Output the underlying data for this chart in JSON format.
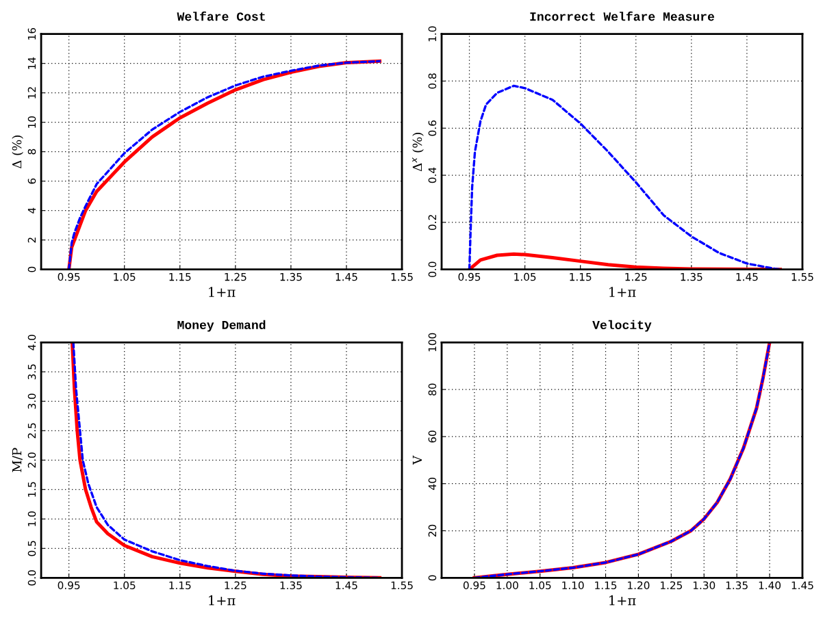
{
  "chart_data": [
    {
      "type": "line",
      "title": "Welfare Cost",
      "xlabel": "1+π",
      "ylabel": "Δ (%)",
      "grid": true,
      "xlim": [
        0.9,
        1.55
      ],
      "xticks": [
        0.95,
        1.05,
        1.15,
        1.25,
        1.35,
        1.45,
        1.55
      ],
      "ylim": [
        0,
        16
      ],
      "yticks": [
        0,
        2,
        4,
        6,
        8,
        10,
        12,
        14,
        16
      ],
      "series": [
        {
          "color": "#ff0000",
          "line_style": "solid",
          "x": [
            0.95,
            0.955,
            0.96,
            0.97,
            0.98,
            1.0,
            1.05,
            1.1,
            1.15,
            1.2,
            1.25,
            1.3,
            1.35,
            1.4,
            1.45,
            1.51
          ],
          "values": [
            0,
            1.5,
            2.0,
            3.0,
            4.0,
            5.3,
            7.3,
            9.0,
            10.3,
            11.3,
            12.2,
            12.9,
            13.4,
            13.8,
            14.05,
            14.15
          ]
        },
        {
          "color": "#0000ff",
          "line_style": "dashed",
          "x": [
            0.95,
            0.955,
            0.96,
            0.97,
            0.98,
            1.0,
            1.05,
            1.1,
            1.15,
            1.2,
            1.25,
            1.3,
            1.35,
            1.4,
            1.45,
            1.51
          ],
          "values": [
            0,
            1.8,
            2.5,
            3.5,
            4.3,
            5.8,
            7.9,
            9.5,
            10.7,
            11.7,
            12.5,
            13.1,
            13.5,
            13.85,
            14.05,
            14.15
          ]
        }
      ]
    },
    {
      "type": "line",
      "title": "Incorrect Welfare Measure",
      "xlabel": "1+π",
      "ylabel": "Δ$^{x}$ (%)",
      "grid": true,
      "xlim": [
        0.9,
        1.55
      ],
      "xticks": [
        0.95,
        1.05,
        1.15,
        1.25,
        1.35,
        1.45,
        1.55
      ],
      "ylim": [
        0,
        1
      ],
      "yticks": [
        {
          "value": 0,
          "label": "0.0"
        },
        0.2,
        0.4,
        0.6,
        0.8,
        {
          "value": 1,
          "label": "1.0"
        }
      ],
      "series": [
        {
          "color": "#ff0000",
          "line_style": "solid",
          "x": [
            0.95,
            0.97,
            1.0,
            1.03,
            1.05,
            1.1,
            1.15,
            1.2,
            1.25,
            1.3,
            1.35,
            1.51
          ],
          "values": [
            0,
            0.04,
            0.06,
            0.065,
            0.063,
            0.05,
            0.035,
            0.02,
            0.01,
            0.005,
            0.002,
            0
          ]
        },
        {
          "color": "#0000ff",
          "line_style": "dashed",
          "x": [
            0.95,
            0.952,
            0.955,
            0.96,
            0.97,
            0.98,
            1.0,
            1.03,
            1.05,
            1.1,
            1.15,
            1.2,
            1.25,
            1.3,
            1.35,
            1.4,
            1.45,
            1.5,
            1.51
          ],
          "values": [
            0,
            0.15,
            0.35,
            0.5,
            0.63,
            0.7,
            0.75,
            0.78,
            0.77,
            0.72,
            0.62,
            0.5,
            0.37,
            0.23,
            0.14,
            0.07,
            0.025,
            0.003,
            0
          ]
        }
      ]
    },
    {
      "type": "line",
      "title": "Money Demand",
      "xlabel": "1+π",
      "ylabel": "M/P",
      "grid": true,
      "xlim": [
        0.9,
        1.55
      ],
      "xticks": [
        0.95,
        1.05,
        1.15,
        1.25,
        1.35,
        1.45,
        1.55
      ],
      "ylim": [
        0,
        4
      ],
      "yticks": [
        {
          "value": 0,
          "label": "0.0"
        },
        0.5,
        {
          "value": 1,
          "label": "1.0"
        },
        1.5,
        {
          "value": 2,
          "label": "2.0"
        },
        2.5,
        {
          "value": 3,
          "label": "3.0"
        },
        3.5,
        {
          "value": 4,
          "label": "4.0"
        }
      ],
      "series": [
        {
          "color": "#ff0000",
          "line_style": "solid",
          "x": [
            0.956,
            0.96,
            0.965,
            0.97,
            0.98,
            0.99,
            1.0,
            1.02,
            1.05,
            1.1,
            1.15,
            1.2,
            1.25,
            1.3,
            1.35,
            1.4,
            1.51
          ],
          "values": [
            4.0,
            3.2,
            2.5,
            2.0,
            1.5,
            1.2,
            0.95,
            0.75,
            0.55,
            0.36,
            0.25,
            0.17,
            0.11,
            0.06,
            0.03,
            0.02,
            0
          ]
        },
        {
          "color": "#0000ff",
          "line_style": "dashed",
          "x": [
            0.958,
            0.963,
            0.97,
            0.975,
            0.985,
            1.0,
            1.02,
            1.05,
            1.1,
            1.15,
            1.2,
            1.25,
            1.3,
            1.35,
            1.4,
            1.51
          ],
          "values": [
            4.0,
            3.2,
            2.5,
            2.0,
            1.6,
            1.2,
            0.9,
            0.65,
            0.45,
            0.3,
            0.2,
            0.12,
            0.07,
            0.04,
            0.02,
            0
          ]
        }
      ]
    },
    {
      "type": "line",
      "title": "Velocity",
      "xlabel": "1+π",
      "ylabel": "V",
      "grid": true,
      "xlim": [
        0.9,
        1.45
      ],
      "xticks": [
        0.95,
        {
          "value": 1,
          "label": "1.00"
        },
        1.05,
        {
          "value": 1.1,
          "label": "1.10"
        },
        1.15,
        {
          "value": 1.2,
          "label": "1.20"
        },
        1.25,
        {
          "value": 1.3,
          "label": "1.30"
        },
        1.35,
        {
          "value": 1.4,
          "label": "1.40"
        },
        1.45
      ],
      "ylim": [
        0,
        100
      ],
      "yticks": [
        0,
        20,
        40,
        60,
        80,
        100
      ],
      "series": [
        {
          "color": "#ff0000",
          "line_style": "solid",
          "x": [
            0.95,
            1.0,
            1.05,
            1.1,
            1.15,
            1.2,
            1.25,
            1.28,
            1.3,
            1.32,
            1.34,
            1.36,
            1.38,
            1.39,
            1.4
          ],
          "values": [
            0,
            1.5,
            2.8,
            4.3,
            6.5,
            10,
            15.5,
            20,
            25,
            32,
            42,
            55,
            72,
            85,
            100
          ]
        },
        {
          "color": "#0000ff",
          "line_style": "dashed",
          "x": [
            0.95,
            1.0,
            1.05,
            1.1,
            1.15,
            1.2,
            1.25,
            1.28,
            1.3,
            1.32,
            1.34,
            1.36,
            1.38,
            1.39,
            1.4
          ],
          "values": [
            0,
            1.5,
            2.8,
            4.3,
            6.5,
            10,
            15.5,
            20,
            25,
            32,
            42,
            55,
            72,
            85,
            100
          ]
        }
      ]
    }
  ]
}
